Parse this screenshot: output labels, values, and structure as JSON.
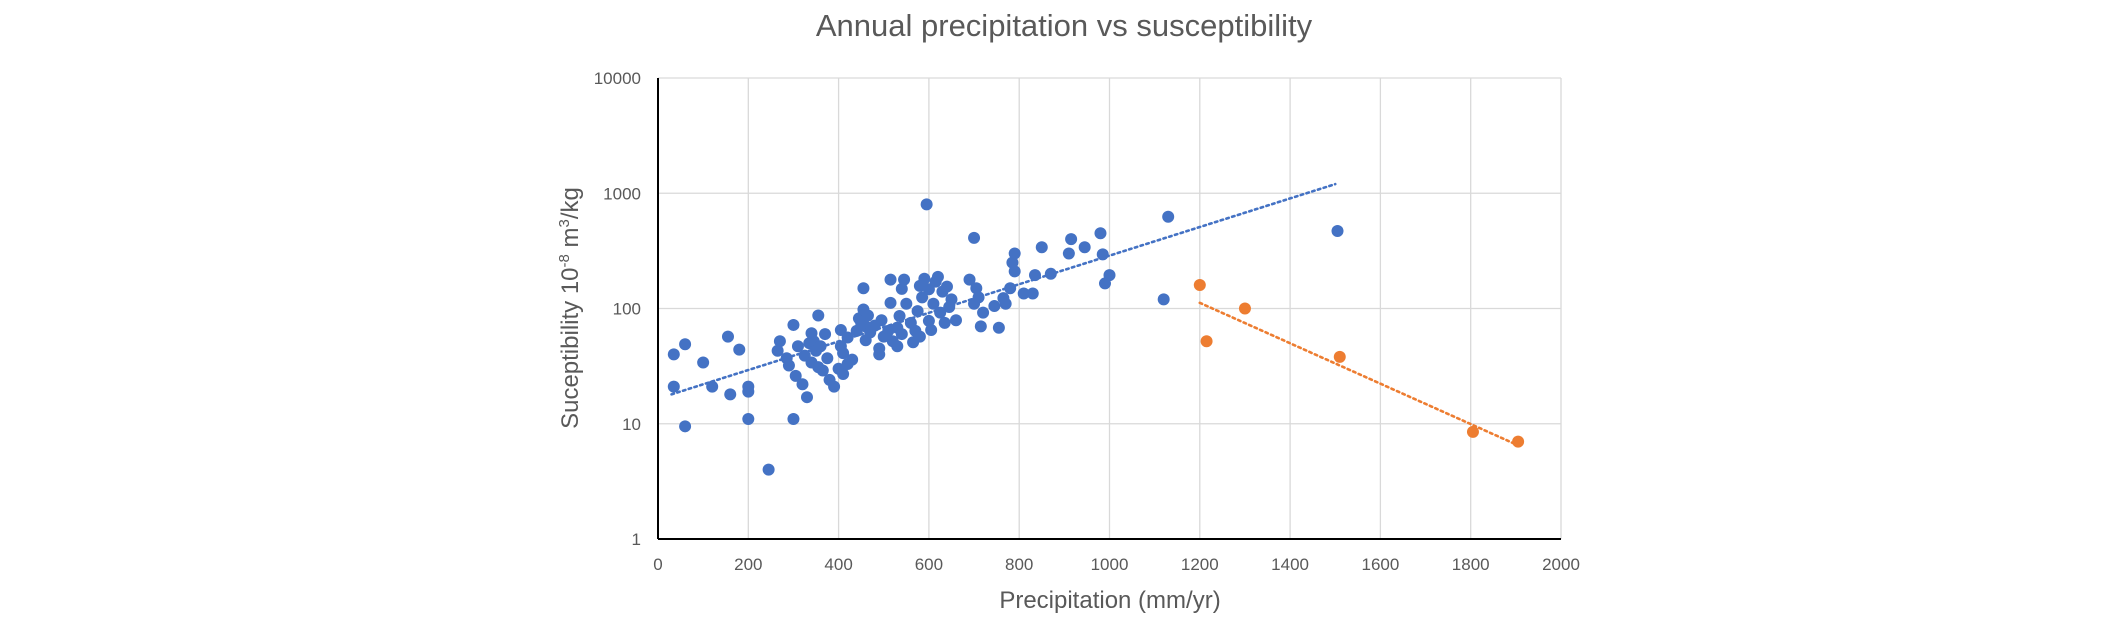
{
  "chart_data": {
    "type": "scatter",
    "title": "Annual precipitation vs susceptibility",
    "xlabel": "Precipitation (mm/yr)",
    "ylabel": {
      "base": "Suceptibility 10",
      "sup1": "-8",
      "mid": " m",
      "sup2": "3",
      "end": "/kg"
    },
    "xlim": [
      0,
      2000
    ],
    "ylim": [
      1,
      10000
    ],
    "y_scale": "log",
    "grid": true,
    "x_ticks": [
      0,
      200,
      400,
      600,
      800,
      1000,
      1200,
      1400,
      1600,
      1800,
      2000
    ],
    "x_tick_labels": [
      "0",
      "200",
      "400",
      "600",
      "800",
      "1000",
      "1200",
      "1400",
      "1600",
      "1800",
      "2000"
    ],
    "y_ticks": [
      1,
      10,
      100,
      1000,
      10000
    ],
    "y_tick_labels": [
      "1",
      "10",
      "100",
      "1000",
      "10000"
    ],
    "series": [
      {
        "color": "#4472C4",
        "trendline": {
          "type": "exponential",
          "x": [
            30,
            1500
          ],
          "y": [
            18,
            1200
          ]
        },
        "points": [
          [
            35,
            40
          ],
          [
            35,
            21
          ],
          [
            60,
            49
          ],
          [
            60,
            9.5
          ],
          [
            100,
            34
          ],
          [
            120,
            21
          ],
          [
            155,
            57
          ],
          [
            160,
            18
          ],
          [
            180,
            44
          ],
          [
            200,
            21
          ],
          [
            200,
            19
          ],
          [
            200,
            11
          ],
          [
            245,
            4
          ],
          [
            265,
            43
          ],
          [
            270,
            52
          ],
          [
            285,
            37
          ],
          [
            290,
            32
          ],
          [
            300,
            72
          ],
          [
            300,
            11
          ],
          [
            305,
            26
          ],
          [
            310,
            47
          ],
          [
            320,
            22
          ],
          [
            325,
            39
          ],
          [
            330,
            17
          ],
          [
            335,
            50
          ],
          [
            340,
            61
          ],
          [
            340,
            34
          ],
          [
            345,
            52
          ],
          [
            350,
            43
          ],
          [
            355,
            87
          ],
          [
            355,
            31
          ],
          [
            360,
            47
          ],
          [
            365,
            29
          ],
          [
            370,
            60
          ],
          [
            375,
            37
          ],
          [
            380,
            24
          ],
          [
            390,
            21
          ],
          [
            400,
            30
          ],
          [
            405,
            47
          ],
          [
            405,
            65
          ],
          [
            410,
            41
          ],
          [
            410,
            27
          ],
          [
            420,
            56
          ],
          [
            420,
            33
          ],
          [
            430,
            36
          ],
          [
            440,
            64
          ],
          [
            445,
            82
          ],
          [
            450,
            75
          ],
          [
            455,
            150
          ],
          [
            455,
            98
          ],
          [
            460,
            70
          ],
          [
            460,
            53
          ],
          [
            465,
            87
          ],
          [
            470,
            62
          ],
          [
            480,
            71
          ],
          [
            490,
            45
          ],
          [
            490,
            40
          ],
          [
            495,
            79
          ],
          [
            500,
            57
          ],
          [
            510,
            64
          ],
          [
            515,
            112
          ],
          [
            515,
            178
          ],
          [
            520,
            52
          ],
          [
            530,
            68
          ],
          [
            530,
            47
          ],
          [
            535,
            86
          ],
          [
            540,
            60
          ],
          [
            540,
            148
          ],
          [
            545,
            178
          ],
          [
            550,
            110
          ],
          [
            560,
            75
          ],
          [
            565,
            51
          ],
          [
            570,
            64
          ],
          [
            575,
            95
          ],
          [
            580,
            157
          ],
          [
            580,
            57
          ],
          [
            585,
            125
          ],
          [
            590,
            181
          ],
          [
            595,
            800
          ],
          [
            600,
            147
          ],
          [
            600,
            78
          ],
          [
            605,
            65
          ],
          [
            610,
            110
          ],
          [
            615,
            171
          ],
          [
            620,
            188
          ],
          [
            625,
            92
          ],
          [
            630,
            140
          ],
          [
            635,
            75
          ],
          [
            640,
            155
          ],
          [
            645,
            103
          ],
          [
            650,
            120
          ],
          [
            660,
            79
          ],
          [
            690,
            178
          ],
          [
            700,
            110
          ],
          [
            700,
            410
          ],
          [
            705,
            150
          ],
          [
            710,
            125
          ],
          [
            715,
            70
          ],
          [
            720,
            92
          ],
          [
            745,
            105
          ],
          [
            755,
            68
          ],
          [
            765,
            123
          ],
          [
            770,
            110
          ],
          [
            780,
            150
          ],
          [
            785,
            250
          ],
          [
            790,
            210
          ],
          [
            790,
            300
          ],
          [
            810,
            135
          ],
          [
            830,
            135
          ],
          [
            835,
            195
          ],
          [
            850,
            340
          ],
          [
            870,
            200
          ],
          [
            910,
            300
          ],
          [
            915,
            400
          ],
          [
            945,
            340
          ],
          [
            980,
            450
          ],
          [
            985,
            295
          ],
          [
            990,
            165
          ],
          [
            1000,
            195
          ],
          [
            1120,
            120
          ],
          [
            1130,
            625
          ],
          [
            1505,
            470
          ]
        ]
      },
      {
        "color": "#ED7D31",
        "trendline": {
          "type": "exponential",
          "x": [
            1200,
            1905
          ],
          "y": [
            112,
            6.5
          ]
        },
        "points": [
          [
            1200,
            160
          ],
          [
            1215,
            52
          ],
          [
            1300,
            100
          ],
          [
            1510,
            38
          ],
          [
            1805,
            8.5
          ],
          [
            1905,
            7
          ]
        ]
      }
    ]
  }
}
